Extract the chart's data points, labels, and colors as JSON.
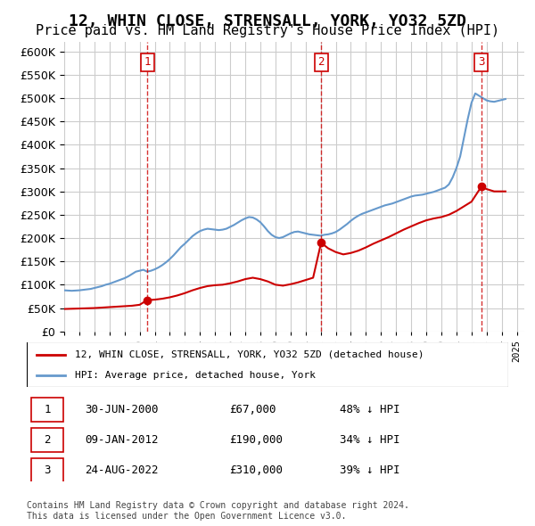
{
  "title": "12, WHIN CLOSE, STRENSALL, YORK, YO32 5ZD",
  "subtitle": "Price paid vs. HM Land Registry's House Price Index (HPI)",
  "title_fontsize": 13,
  "subtitle_fontsize": 11,
  "ylabel_ticks": [
    0,
    50000,
    100000,
    150000,
    200000,
    250000,
    300000,
    350000,
    400000,
    450000,
    500000,
    550000,
    600000
  ],
  "ylim": [
    0,
    620000
  ],
  "xlim_start": 1995.0,
  "xlim_end": 2025.5,
  "sale_dates": [
    2000.5,
    2012.03,
    2022.65
  ],
  "sale_prices": [
    67000,
    190000,
    310000
  ],
  "sale_labels": [
    "1",
    "2",
    "3"
  ],
  "sale_date_strs": [
    "30-JUN-2000",
    "09-JAN-2012",
    "24-AUG-2022"
  ],
  "sale_price_strs": [
    "£67,000",
    "£190,000",
    "£310,000"
  ],
  "sale_below_strs": [
    "48% ↓ HPI",
    "34% ↓ HPI",
    "39% ↓ HPI"
  ],
  "legend_line1": "12, WHIN CLOSE, STRENSALL, YORK, YO32 5ZD (detached house)",
  "legend_line2": "HPI: Average price, detached house, York",
  "red_color": "#cc0000",
  "blue_color": "#6699cc",
  "dashed_color": "#cc0000",
  "background_color": "#ffffff",
  "grid_color": "#cccccc",
  "footer": "Contains HM Land Registry data © Crown copyright and database right 2024.\nThis data is licensed under the Open Government Licence v3.0.",
  "hpi_years": [
    1995.0,
    1995.25,
    1995.5,
    1995.75,
    1996.0,
    1996.25,
    1996.5,
    1996.75,
    1997.0,
    1997.25,
    1997.5,
    1997.75,
    1998.0,
    1998.25,
    1998.5,
    1998.75,
    1999.0,
    1999.25,
    1999.5,
    1999.75,
    2000.0,
    2000.25,
    2000.5,
    2000.75,
    2001.0,
    2001.25,
    2001.5,
    2001.75,
    2002.0,
    2002.25,
    2002.5,
    2002.75,
    2003.0,
    2003.25,
    2003.5,
    2003.75,
    2004.0,
    2004.25,
    2004.5,
    2004.75,
    2005.0,
    2005.25,
    2005.5,
    2005.75,
    2006.0,
    2006.25,
    2006.5,
    2006.75,
    2007.0,
    2007.25,
    2007.5,
    2007.75,
    2008.0,
    2008.25,
    2008.5,
    2008.75,
    2009.0,
    2009.25,
    2009.5,
    2009.75,
    2010.0,
    2010.25,
    2010.5,
    2010.75,
    2011.0,
    2011.25,
    2011.5,
    2011.75,
    2012.0,
    2012.25,
    2012.5,
    2012.75,
    2013.0,
    2013.25,
    2013.5,
    2013.75,
    2014.0,
    2014.25,
    2014.5,
    2014.75,
    2015.0,
    2015.25,
    2015.5,
    2015.75,
    2016.0,
    2016.25,
    2016.5,
    2016.75,
    2017.0,
    2017.25,
    2017.5,
    2017.75,
    2018.0,
    2018.25,
    2018.5,
    2018.75,
    2019.0,
    2019.25,
    2019.5,
    2019.75,
    2020.0,
    2020.25,
    2020.5,
    2020.75,
    2021.0,
    2021.25,
    2021.5,
    2021.75,
    2022.0,
    2022.25,
    2022.5,
    2022.75,
    2023.0,
    2023.25,
    2023.5,
    2023.75,
    2024.0,
    2024.25
  ],
  "hpi_values": [
    88000,
    87500,
    87000,
    87500,
    88000,
    89000,
    90000,
    91000,
    93000,
    95000,
    97000,
    100000,
    102000,
    105000,
    108000,
    111000,
    114000,
    118000,
    123000,
    128000,
    130000,
    132000,
    128000,
    130000,
    133000,
    137000,
    142000,
    148000,
    155000,
    163000,
    172000,
    181000,
    188000,
    196000,
    204000,
    210000,
    215000,
    218000,
    220000,
    219000,
    218000,
    217000,
    218000,
    220000,
    224000,
    228000,
    233000,
    238000,
    242000,
    245000,
    244000,
    240000,
    234000,
    225000,
    215000,
    207000,
    202000,
    200000,
    202000,
    206000,
    210000,
    213000,
    214000,
    212000,
    210000,
    208000,
    207000,
    206000,
    205000,
    207000,
    208000,
    210000,
    213000,
    218000,
    224000,
    230000,
    237000,
    243000,
    248000,
    252000,
    255000,
    258000,
    261000,
    264000,
    267000,
    270000,
    272000,
    274000,
    277000,
    280000,
    283000,
    286000,
    289000,
    291000,
    292000,
    293000,
    295000,
    297000,
    299000,
    302000,
    305000,
    308000,
    315000,
    330000,
    350000,
    375000,
    415000,
    455000,
    490000,
    510000,
    505000,
    500000,
    495000,
    493000,
    492000,
    494000,
    496000,
    498000
  ],
  "red_years": [
    1995.0,
    1995.5,
    1996.0,
    1996.5,
    1997.0,
    1997.5,
    1998.0,
    1998.5,
    1999.0,
    1999.5,
    2000.0,
    2000.5,
    2001.0,
    2001.5,
    2002.0,
    2002.5,
    2003.0,
    2003.5,
    2004.0,
    2004.5,
    2005.0,
    2005.5,
    2006.0,
    2006.5,
    2007.0,
    2007.5,
    2008.0,
    2008.5,
    2009.0,
    2009.5,
    2010.0,
    2010.5,
    2011.0,
    2011.5,
    2012.03,
    2012.5,
    2013.0,
    2013.5,
    2014.0,
    2014.5,
    2015.0,
    2015.5,
    2016.0,
    2016.5,
    2017.0,
    2017.5,
    2018.0,
    2018.5,
    2019.0,
    2019.5,
    2020.0,
    2020.5,
    2021.0,
    2021.5,
    2022.0,
    2022.65,
    2023.0,
    2023.5,
    2024.0,
    2024.25
  ],
  "red_values": [
    48000,
    48500,
    49000,
    49500,
    50000,
    51000,
    52000,
    53000,
    54000,
    55000,
    57000,
    67000,
    68000,
    70000,
    73000,
    77000,
    82000,
    88000,
    93000,
    97000,
    99000,
    100000,
    103000,
    107000,
    112000,
    115000,
    112000,
    107000,
    100000,
    98000,
    101000,
    105000,
    110000,
    115000,
    190000,
    178000,
    170000,
    165000,
    168000,
    173000,
    180000,
    188000,
    195000,
    202000,
    210000,
    218000,
    225000,
    232000,
    238000,
    242000,
    245000,
    250000,
    258000,
    268000,
    278000,
    310000,
    305000,
    300000,
    300000,
    300000
  ]
}
